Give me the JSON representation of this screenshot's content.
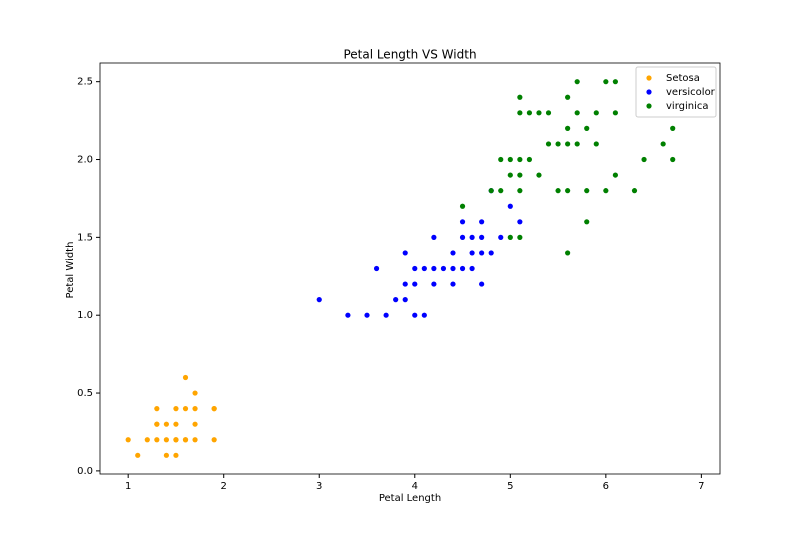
{
  "chart_data": {
    "type": "scatter",
    "title": "Petal Length VS Width",
    "x_label": "Petal Length",
    "y_label": "Petal Width",
    "xlim": [
      0.705,
      7.195
    ],
    "ylim": [
      -0.02,
      2.62
    ],
    "xticks": [
      1,
      2,
      3,
      4,
      5,
      6,
      7
    ],
    "yticks": [
      {
        "value": 0,
        "label": "0.0"
      },
      0.5,
      {
        "value": 1,
        "label": "1.0"
      },
      1.5,
      {
        "value": 2,
        "label": "2.0"
      },
      2.5
    ],
    "grid": false,
    "legend": "upper right",
    "series": [
      {
        "name": "Setosa",
        "color": "#ffa500",
        "x": [
          1.4,
          1.3,
          1.5,
          1.7,
          1.4,
          1.5,
          1.6,
          1.4,
          1.1,
          1.2,
          1.5,
          1.3,
          1.7,
          1.5,
          1.0,
          1.9,
          1.6,
          1.6,
          1.9,
          1.3,
          1.7,
          1.3,
          1.7,
          1.9,
          1.5,
          1.6
        ],
        "values": [
          0.2,
          0.2,
          0.2,
          0.4,
          0.3,
          0.1,
          0.2,
          0.1,
          0.1,
          0.2,
          0.4,
          0.4,
          0.3,
          0.3,
          0.2,
          0.2,
          0.4,
          0.6,
          0.4,
          0.3,
          0.5,
          0.3,
          0.2,
          0.4,
          0.2,
          0.2
        ]
      },
      {
        "name": "versicolor",
        "color": "#0000ff",
        "x": [
          4.7,
          4.5,
          4.9,
          4.0,
          4.6,
          4.5,
          4.7,
          3.3,
          4.6,
          3.9,
          3.5,
          4.2,
          4.0,
          3.6,
          4.4,
          4.1,
          3.9,
          4.8,
          4.7,
          4.3,
          4.8,
          5.0,
          3.8,
          3.7,
          3.9,
          5.1,
          4.5,
          4.7,
          4.4,
          4.1,
          4.4,
          4.6,
          4.0,
          4.2,
          4.2,
          3.0
        ],
        "values": [
          1.4,
          1.5,
          1.5,
          1.3,
          1.5,
          1.3,
          1.6,
          1.0,
          1.3,
          1.4,
          1.0,
          1.5,
          1.0,
          1.3,
          1.4,
          1.0,
          1.1,
          1.8,
          1.2,
          1.3,
          1.4,
          1.7,
          1.1,
          1.0,
          1.2,
          1.6,
          1.6,
          1.5,
          1.3,
          1.3,
          1.2,
          1.4,
          1.2,
          1.3,
          1.2,
          1.1
        ]
      },
      {
        "name": "virginica",
        "color": "#008000",
        "x": [
          6.0,
          5.1,
          5.9,
          5.6,
          5.8,
          6.6,
          4.5,
          6.3,
          5.8,
          6.1,
          5.1,
          5.3,
          5.5,
          5.0,
          5.1,
          5.3,
          5.5,
          6.7,
          6.9,
          5.0,
          5.7,
          4.9,
          6.7,
          4.9,
          5.7,
          6.0,
          4.8,
          5.6,
          5.8,
          6.1,
          6.4,
          5.6,
          5.1,
          5.6,
          6.1,
          5.6,
          5.4,
          5.1,
          5.9,
          5.7,
          5.2,
          5.0,
          5.2,
          5.4,
          5.1
        ],
        "values": [
          2.5,
          1.9,
          2.1,
          1.8,
          2.2,
          2.1,
          1.7,
          1.8,
          1.8,
          2.5,
          2.0,
          1.9,
          2.1,
          2.0,
          2.4,
          2.3,
          1.8,
          2.2,
          2.3,
          1.5,
          2.3,
          2.0,
          2.0,
          1.8,
          2.1,
          1.8,
          1.8,
          2.1,
          1.6,
          1.9,
          2.0,
          2.2,
          1.5,
          1.4,
          2.3,
          2.4,
          2.1,
          2.3,
          2.3,
          2.5,
          2.3,
          1.9,
          2.0,
          2.3,
          1.8
        ]
      }
    ]
  }
}
